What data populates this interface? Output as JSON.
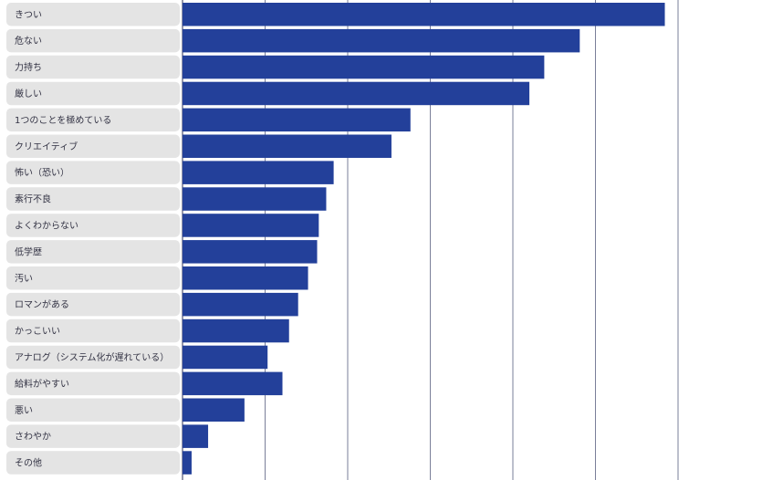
{
  "chart_data": {
    "type": "bar",
    "orientation": "horizontal",
    "categories": [
      "きつい",
      "危ない",
      "力持ち",
      "厳しい",
      "1つのことを極めている",
      "クリエイティブ",
      "怖い（恐い）",
      "素行不良",
      "よくわからない",
      "低学歴",
      "汚い",
      "ロマンがある",
      "かっこいい",
      "アナログ（システム化が遅れている）",
      "給料がやすい",
      "悪い",
      "さわやか",
      "その他"
    ],
    "values": [
      58.4,
      48.1,
      43.8,
      42.0,
      27.6,
      25.3,
      18.3,
      17.4,
      16.5,
      16.3,
      15.2,
      14.0,
      12.9,
      10.3,
      12.1,
      7.5,
      3.1,
      1.1
    ],
    "xlim": [
      0,
      60
    ],
    "gridlines": [
      0,
      10,
      20,
      30,
      40,
      50,
      60
    ],
    "grid": true,
    "bar_color": "#23409a",
    "gridline_color": "#7a7f99",
    "label_bg_color": "#e4e4e4"
  }
}
